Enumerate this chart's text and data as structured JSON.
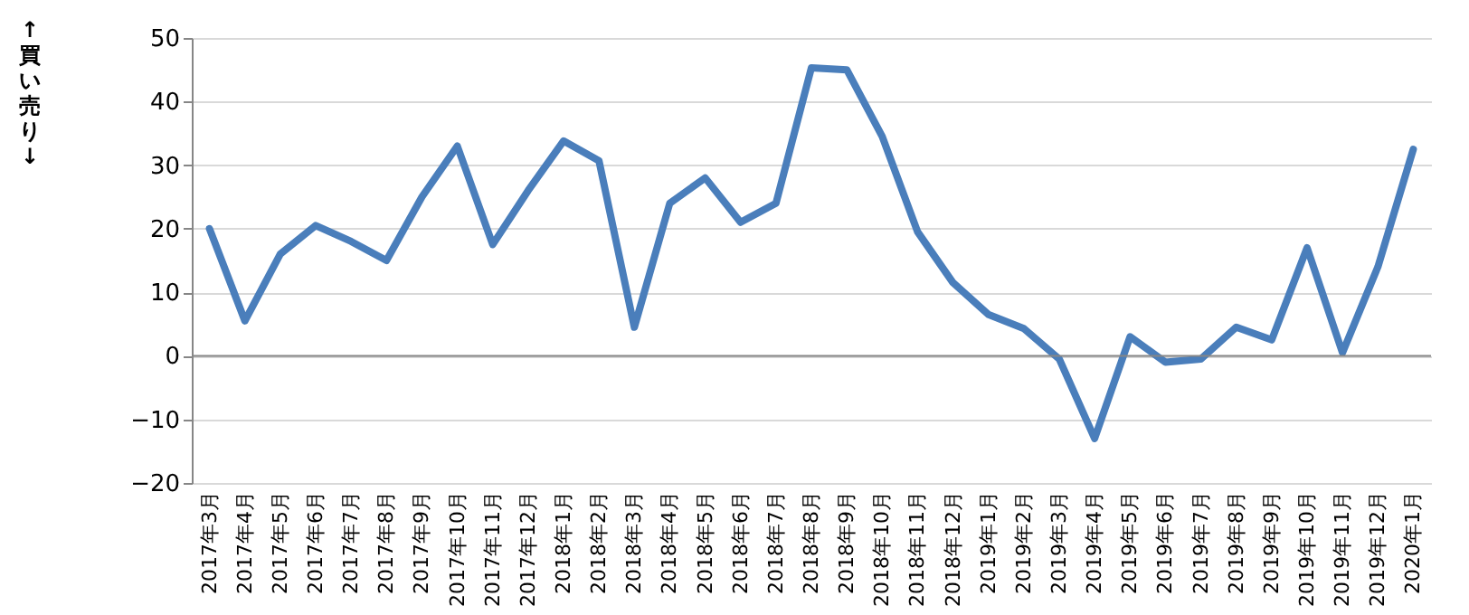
{
  "chart_data": {
    "type": "line",
    "ylabel": "↑買い売り↓",
    "categories": [
      "2017年3月",
      "2017年4月",
      "2017年5月",
      "2017年6月",
      "2017年7月",
      "2017年8月",
      "2017年9月",
      "2017年10月",
      "2017年11月",
      "2017年12月",
      "2018年1月",
      "2018年2月",
      "2018年3月",
      "2018年4月",
      "2018年5月",
      "2018年6月",
      "2018年7月",
      "2018年8月",
      "2018年9月",
      "2018年10月",
      "2018年11月",
      "2018年12月",
      "2019年1月",
      "2019年2月",
      "2019年3月",
      "2019年4月",
      "2019年5月",
      "2019年6月",
      "2019年7月",
      "2019年8月",
      "2019年9月",
      "2019年10月",
      "2019年11月",
      "2019年12月",
      "2020年1月"
    ],
    "series": [
      {
        "color": "#4a7ebb",
        "values": [
          20,
          5.5,
          16,
          20.5,
          18,
          15,
          25,
          33,
          17.5,
          26,
          33.8,
          30.7,
          4.5,
          24,
          28,
          21,
          24,
          45.3,
          45,
          34.5,
          19.5,
          11.5,
          6.5,
          4.3,
          -0.5,
          -13,
          3,
          -1,
          -0.5,
          4.5,
          2.5,
          17,
          0.5,
          14,
          32.5
        ]
      }
    ],
    "ylim": [
      -20,
      50
    ],
    "yticks": [
      -20,
      -10,
      0,
      10,
      20,
      30,
      40,
      50
    ],
    "grid": "y",
    "marker": "none",
    "line_style": "solid"
  }
}
